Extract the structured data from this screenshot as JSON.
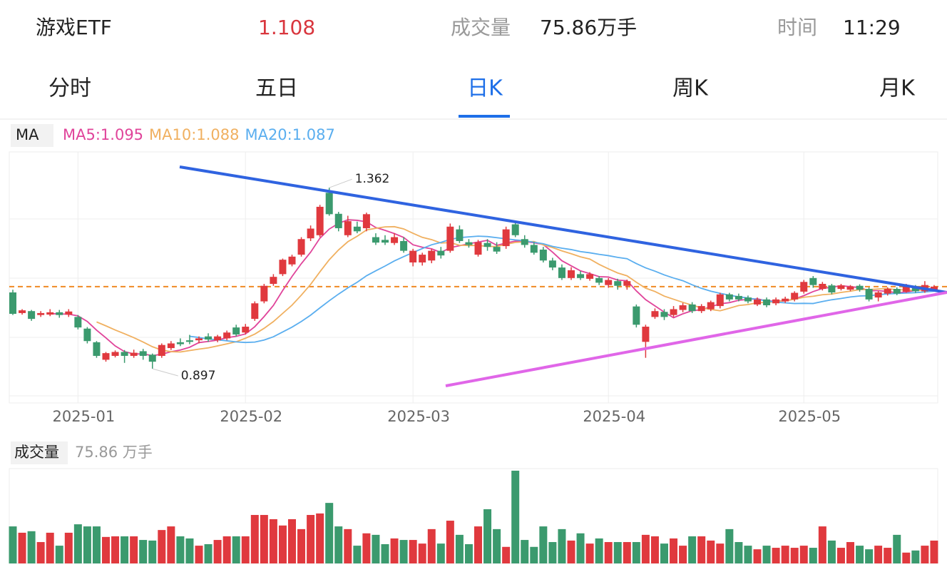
{
  "header": {
    "name": "游戏ETF",
    "price": 1.108,
    "volume_label": "成交量",
    "volume": "75.86万手",
    "time_label": "时间",
    "time": "11:29"
  },
  "tabs": [
    "分时",
    "五日",
    "日K",
    "周K",
    "月K"
  ],
  "active_tab": "日K",
  "chart_data": [
    {
      "type": "candlestick",
      "legend_title": "MA",
      "ma": [
        {
          "label": "MA5:1.095",
          "period": 5,
          "color": "#e0449a"
        },
        {
          "label": "MA10:1.088",
          "period": 10,
          "color": "#f0b060"
        },
        {
          "label": "MA20:1.087",
          "period": 20,
          "color": "#5aaeef"
        }
      ],
      "up_color": "#e0393e",
      "down_color": "#3b9a6e",
      "price_line_color": "#f08a24",
      "high_label": 1.362,
      "low_label": 0.897,
      "ylim": [
        0.809,
        1.454
      ],
      "categories": [
        null,
        null,
        null,
        null,
        null,
        null,
        null,
        "2025-01",
        null,
        null,
        null,
        null,
        null,
        null,
        null,
        null,
        null,
        null,
        null,
        null,
        null,
        null,
        null,
        null,
        null,
        "2025-02",
        null,
        null,
        null,
        null,
        null,
        null,
        null,
        null,
        null,
        null,
        null,
        null,
        null,
        null,
        null,
        null,
        null,
        "2025-03",
        null,
        null,
        null,
        null,
        null,
        null,
        null,
        null,
        null,
        null,
        null,
        null,
        null,
        null,
        null,
        null,
        null,
        null,
        null,
        null,
        "2025-04",
        null,
        null,
        null,
        null,
        null,
        null,
        null,
        null,
        null,
        null,
        null,
        null,
        null,
        null,
        null,
        null,
        null,
        null,
        null,
        null,
        "2025-05",
        null,
        null,
        null,
        null,
        null,
        null,
        null,
        null,
        null,
        null,
        null,
        null,
        null,
        null
      ],
      "open": [
        1.093,
        1.04,
        1.045,
        1.035,
        1.036,
        1.042,
        1.036,
        1.03,
        1.0,
        0.965,
        0.92,
        0.93,
        0.94,
        0.93,
        0.942,
        0.933,
        0.93,
        0.95,
        0.965,
        0.97,
        0.97,
        0.98,
        0.97,
        0.975,
        1.003,
        0.99,
        1.025,
        1.07,
        1.115,
        1.14,
        1.165,
        1.19,
        1.232,
        1.24,
        1.349,
        1.295,
        1.24,
        1.262,
        1.258,
        1.235,
        1.228,
        1.22,
        1.225,
        1.17,
        1.17,
        1.175,
        1.2,
        1.2,
        1.255,
        1.222,
        1.19,
        1.22,
        1.21,
        1.212,
        1.268,
        1.23,
        1.215,
        1.203,
        1.175,
        1.157,
        1.13,
        1.14,
        1.128,
        1.13,
        1.112,
        1.122,
        1.11,
        1.057,
        0.966,
        1.03,
        1.043,
        1.035,
        1.048,
        1.062,
        1.045,
        1.05,
        1.058,
        1.088,
        1.084,
        1.08,
        1.062,
        1.075,
        1.065,
        1.07,
        1.075,
        1.095,
        1.13,
        1.102,
        1.111,
        1.102,
        1.1,
        1.11,
        1.102,
        1.08,
        1.09,
        1.102,
        1.095,
        1.108,
        1.096,
        1.098
      ],
      "high": [
        1.1,
        1.05,
        1.048,
        1.045,
        1.05,
        1.048,
        1.05,
        1.035,
        1.004,
        0.968,
        0.94,
        0.944,
        0.945,
        0.946,
        0.948,
        0.936,
        0.962,
        0.968,
        0.975,
        0.984,
        0.98,
        0.988,
        0.984,
        0.995,
        1.01,
        1.012,
        1.07,
        1.115,
        1.14,
        1.18,
        1.19,
        1.235,
        1.265,
        1.318,
        1.362,
        1.3,
        1.29,
        1.275,
        1.298,
        1.245,
        1.24,
        1.245,
        1.235,
        1.205,
        1.195,
        1.205,
        1.21,
        1.27,
        1.265,
        1.23,
        1.228,
        1.23,
        1.222,
        1.262,
        1.275,
        1.24,
        1.222,
        1.21,
        1.182,
        1.165,
        1.158,
        1.148,
        1.145,
        1.135,
        1.13,
        1.128,
        1.126,
        1.062,
        1.01,
        1.052,
        1.05,
        1.058,
        1.066,
        1.068,
        1.063,
        1.072,
        1.092,
        1.092,
        1.09,
        1.085,
        1.08,
        1.08,
        1.08,
        1.082,
        1.096,
        1.125,
        1.135,
        1.12,
        1.115,
        1.115,
        1.112,
        1.114,
        1.106,
        1.097,
        1.106,
        1.106,
        1.115,
        1.112,
        1.122,
        1.112
      ],
      "low": [
        1.035,
        1.036,
        1.02,
        1.03,
        1.032,
        1.028,
        1.03,
        0.998,
        0.962,
        0.925,
        0.915,
        0.926,
        0.912,
        0.925,
        0.92,
        0.897,
        0.925,
        0.945,
        0.955,
        0.96,
        0.962,
        0.966,
        0.965,
        0.97,
        0.98,
        0.985,
        1.02,
        1.065,
        1.11,
        1.135,
        1.16,
        1.185,
        1.225,
        1.235,
        1.29,
        1.25,
        1.235,
        1.245,
        1.25,
        1.215,
        1.215,
        1.215,
        1.195,
        1.16,
        1.162,
        1.168,
        1.18,
        1.195,
        1.22,
        1.208,
        1.185,
        1.2,
        1.192,
        1.205,
        1.235,
        1.208,
        1.19,
        1.17,
        1.15,
        1.125,
        1.125,
        1.125,
        1.123,
        1.112,
        1.105,
        1.1,
        1.1,
        1.003,
        0.925,
        1.025,
        1.022,
        1.03,
        1.042,
        1.04,
        1.04,
        1.045,
        1.052,
        1.07,
        1.07,
        1.065,
        1.058,
        1.055,
        1.06,
        1.066,
        1.07,
        1.09,
        1.105,
        1.098,
        1.088,
        1.098,
        1.096,
        1.095,
        1.07,
        1.07,
        1.085,
        1.086,
        1.092,
        1.092,
        1.092,
        1.095
      ],
      "close": [
        1.038,
        1.047,
        1.025,
        1.04,
        1.042,
        1.035,
        1.044,
        1.003,
        0.968,
        0.93,
        0.937,
        0.94,
        0.93,
        0.938,
        0.93,
        0.915,
        0.958,
        0.962,
        0.96,
        0.966,
        0.975,
        0.972,
        0.98,
        0.99,
        0.985,
        1.005,
        1.065,
        1.11,
        1.133,
        1.177,
        1.185,
        1.23,
        1.257,
        1.313,
        1.294,
        1.258,
        1.276,
        1.25,
        1.294,
        1.221,
        1.221,
        1.235,
        1.2,
        1.2,
        1.19,
        1.2,
        1.188,
        1.262,
        1.225,
        1.215,
        1.222,
        1.21,
        1.198,
        1.255,
        1.24,
        1.215,
        1.195,
        1.175,
        1.157,
        1.13,
        1.15,
        1.13,
        1.14,
        1.118,
        1.125,
        1.11,
        1.122,
        1.01,
        1.005,
        1.045,
        1.03,
        1.05,
        1.06,
        1.045,
        1.058,
        1.068,
        1.088,
        1.075,
        1.075,
        1.07,
        1.075,
        1.06,
        1.075,
        1.077,
        1.092,
        1.12,
        1.112,
        1.115,
        1.093,
        1.111,
        1.108,
        1.1,
        1.075,
        1.093,
        1.102,
        1.09,
        1.11,
        1.096,
        1.112,
        1.108
      ]
    },
    {
      "type": "bar",
      "title": "成交量",
      "subtitle": "75.86 万手",
      "ylim": [
        0,
        315
      ],
      "values": [
        123,
        102,
        107,
        71,
        102,
        59,
        102,
        130,
        123,
        123,
        88,
        90,
        90,
        90,
        78,
        76,
        111,
        123,
        90,
        83,
        59,
        64,
        78,
        90,
        90,
        90,
        161,
        161,
        147,
        126,
        147,
        114,
        161,
        166,
        201,
        123,
        114,
        59,
        100,
        95,
        64,
        83,
        78,
        78,
        66,
        114,
        66,
        142,
        95,
        64,
        123,
        180,
        114,
        55,
        308,
        78,
        55,
        123,
        71,
        114,
        76,
        100,
        66,
        83,
        71,
        71,
        71,
        71,
        95,
        90,
        66,
        83,
        59,
        90,
        90,
        76,
        66,
        114,
        71,
        59,
        47,
        59,
        52,
        59,
        52,
        59,
        52,
        123,
        76,
        52,
        71,
        59,
        47,
        59,
        52,
        95,
        36,
        43,
        59,
        75.86
      ]
    }
  ]
}
